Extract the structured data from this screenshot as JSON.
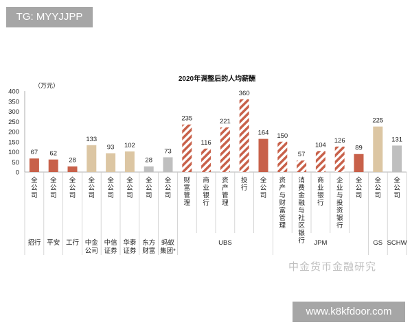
{
  "badge": "TG: MYYJJPP",
  "site": "www.k8kfdoor.com",
  "watermark": "中金货币金融研究",
  "colors": {
    "red": "#c8614a",
    "tan": "#dcc6a3",
    "gray": "#bfbfbf",
    "hatch": "#c8614a"
  },
  "chart_data": {
    "type": "bar",
    "title": "2020年调整后的人均薪酬",
    "ylabel": "（万元）",
    "ylim": [
      0,
      400
    ],
    "yticks": [
      0,
      50,
      100,
      150,
      200,
      250,
      300,
      350,
      400
    ],
    "categories": [
      "全公司",
      "全公司",
      "全公司",
      "全公司",
      "全公司",
      "全公司",
      "全公司",
      "全公司",
      "财富管理",
      "商业银行",
      "资产管理",
      "投行",
      "全公司",
      "资产与财富管理",
      "消费金融与社区银行",
      "商业银行",
      "企业与投资银行",
      "全公司",
      "全公司",
      "全公司"
    ],
    "values": [
      67,
      62,
      28,
      133,
      93,
      102,
      28,
      73,
      235,
      116,
      221,
      360,
      164,
      150,
      57,
      104,
      126,
      89,
      225,
      131
    ],
    "styles": [
      "red",
      "red",
      "red",
      "tan",
      "tan",
      "tan",
      "gray",
      "gray",
      "hatch",
      "hatch",
      "hatch",
      "hatch",
      "red",
      "hatch",
      "hatch",
      "hatch",
      "hatch",
      "red",
      "tan",
      "gray"
    ],
    "groups": [
      {
        "label": "招行",
        "span": 1
      },
      {
        "label": "平安",
        "span": 1
      },
      {
        "label": "工行",
        "span": 1
      },
      {
        "label": "中金\n公司",
        "span": 1
      },
      {
        "label": "中信\n证券",
        "span": 1
      },
      {
        "label": "华泰\n证券",
        "span": 1
      },
      {
        "label": "东方\n财富",
        "span": 1
      },
      {
        "label": "蚂蚁\n集团*",
        "span": 1
      },
      {
        "label": "UBS",
        "span": 5
      },
      {
        "label": "JPM",
        "span": 5
      },
      {
        "label": "GS",
        "span": 1
      },
      {
        "label": "SCHW",
        "span": 1
      }
    ]
  }
}
